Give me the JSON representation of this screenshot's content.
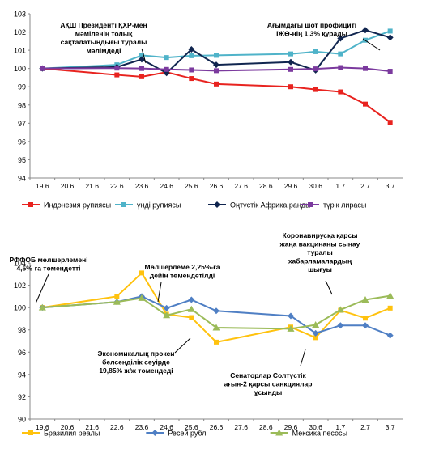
{
  "chart_data": [
    {
      "type": "line",
      "categories": [
        "19.6",
        "20.6",
        "21.6",
        "22.6",
        "23.6",
        "24.6",
        "25.6",
        "26.6",
        "27.6",
        "28.6",
        "29.6",
        "30.6",
        "1.7",
        "2.7",
        "3.7"
      ],
      "ylim": [
        94,
        103
      ],
      "yticks": [
        94,
        95,
        96,
        97,
        98,
        99,
        100,
        101,
        102,
        103
      ],
      "grid": false,
      "legend_position": "bottom",
      "series": [
        {
          "name": "Индонезия рупиясы",
          "color": "#e8231f",
          "marker": "square",
          "values": [
            100,
            null,
            null,
            99.65,
            99.55,
            99.8,
            99.45,
            99.15,
            null,
            null,
            99.0,
            98.85,
            98.72,
            98.05,
            97.05
          ]
        },
        {
          "name": "үнді рупиясы",
          "color": "#4fb3c9",
          "marker": "square",
          "values": [
            100,
            null,
            null,
            100.2,
            100.72,
            100.6,
            100.7,
            100.72,
            null,
            null,
            100.8,
            100.92,
            100.8,
            101.55,
            102.05
          ]
        },
        {
          "name": "Оңтүстік Африка ранды",
          "color": "#10254f",
          "marker": "diamond",
          "values": [
            100,
            null,
            null,
            100.08,
            100.5,
            99.75,
            101.05,
            100.2,
            null,
            null,
            100.35,
            99.9,
            101.65,
            102.1,
            101.7
          ]
        },
        {
          "name": "түрік лирасы",
          "color": "#7b3a9e",
          "marker": "square",
          "values": [
            100,
            null,
            null,
            100.02,
            100.0,
            99.95,
            99.92,
            99.88,
            null,
            null,
            99.95,
            99.98,
            100.05,
            100.0,
            99.85
          ]
        }
      ],
      "annotations": [
        {
          "text": "АҚШ Президенті ҚХР-мен\nмәміленің толық\nсақталатындығы туралы\nмәлімдеді",
          "x": "23.6",
          "y": 100.5
        },
        {
          "text": "Ағымдағы шот профициті\nІЖӨ-нің 1,3% құрады",
          "x": "2.7",
          "y": 102.1
        }
      ]
    },
    {
      "type": "line",
      "categories": [
        "19.6",
        "20.6",
        "21.6",
        "22.6",
        "23.6",
        "24.6",
        "25.6",
        "26.6",
        "27.6",
        "28.6",
        "29.6",
        "30.6",
        "1.7",
        "2.7",
        "3.7"
      ],
      "ylim": [
        90,
        104
      ],
      "yticks": [
        90,
        92,
        94,
        96,
        98,
        100,
        102,
        104
      ],
      "grid": false,
      "legend_position": "bottom",
      "series": [
        {
          "name": "Бразилия реалы",
          "color": "#ffc20e",
          "marker": "square",
          "values": [
            100,
            null,
            null,
            101.0,
            103.1,
            99.4,
            99.1,
            96.9,
            null,
            null,
            98.25,
            97.3,
            99.75,
            99.05,
            99.95
          ]
        },
        {
          "name": "Ресей рублі",
          "color": "#4f7fc4",
          "marker": "diamond",
          "values": [
            100,
            null,
            null,
            100.5,
            101.0,
            99.95,
            100.7,
            99.7,
            null,
            null,
            99.25,
            97.7,
            98.4,
            98.4,
            97.5
          ]
        },
        {
          "name": "Мексика песосы",
          "color": "#9bbb59",
          "marker": "triangle",
          "values": [
            100,
            null,
            null,
            100.5,
            100.85,
            99.3,
            99.85,
            98.2,
            null,
            null,
            98.1,
            98.45,
            99.8,
            100.7,
            101.05
          ]
        }
      ],
      "annotations": [
        {
          "text": "РФФОБ мөлшерлемені\n4,5%-ға төмендетті",
          "x": "19.6",
          "y": 100
        },
        {
          "text": "Мөлшерлеме 2,25%-ға\nдейін төмендетілді",
          "x": "24.6",
          "y": 99.3
        },
        {
          "text": "Коронавирусқа қарсы\nжаңа вакцинаны сынау\nтуралы\nхабарламалардың\nшығуы",
          "x": "1.7",
          "y": 99.75
        },
        {
          "text": "Экономикалық прокси\nбелсенділік сәуірде\n19,85% ж/ж төмендеді",
          "x": "26.6",
          "y": 98.2
        },
        {
          "text": "Сенаторлар Солтүстік\nағын-2 қарсы санкциялар\nұсынды",
          "x": "30.6",
          "y": 97.7
        }
      ]
    }
  ]
}
